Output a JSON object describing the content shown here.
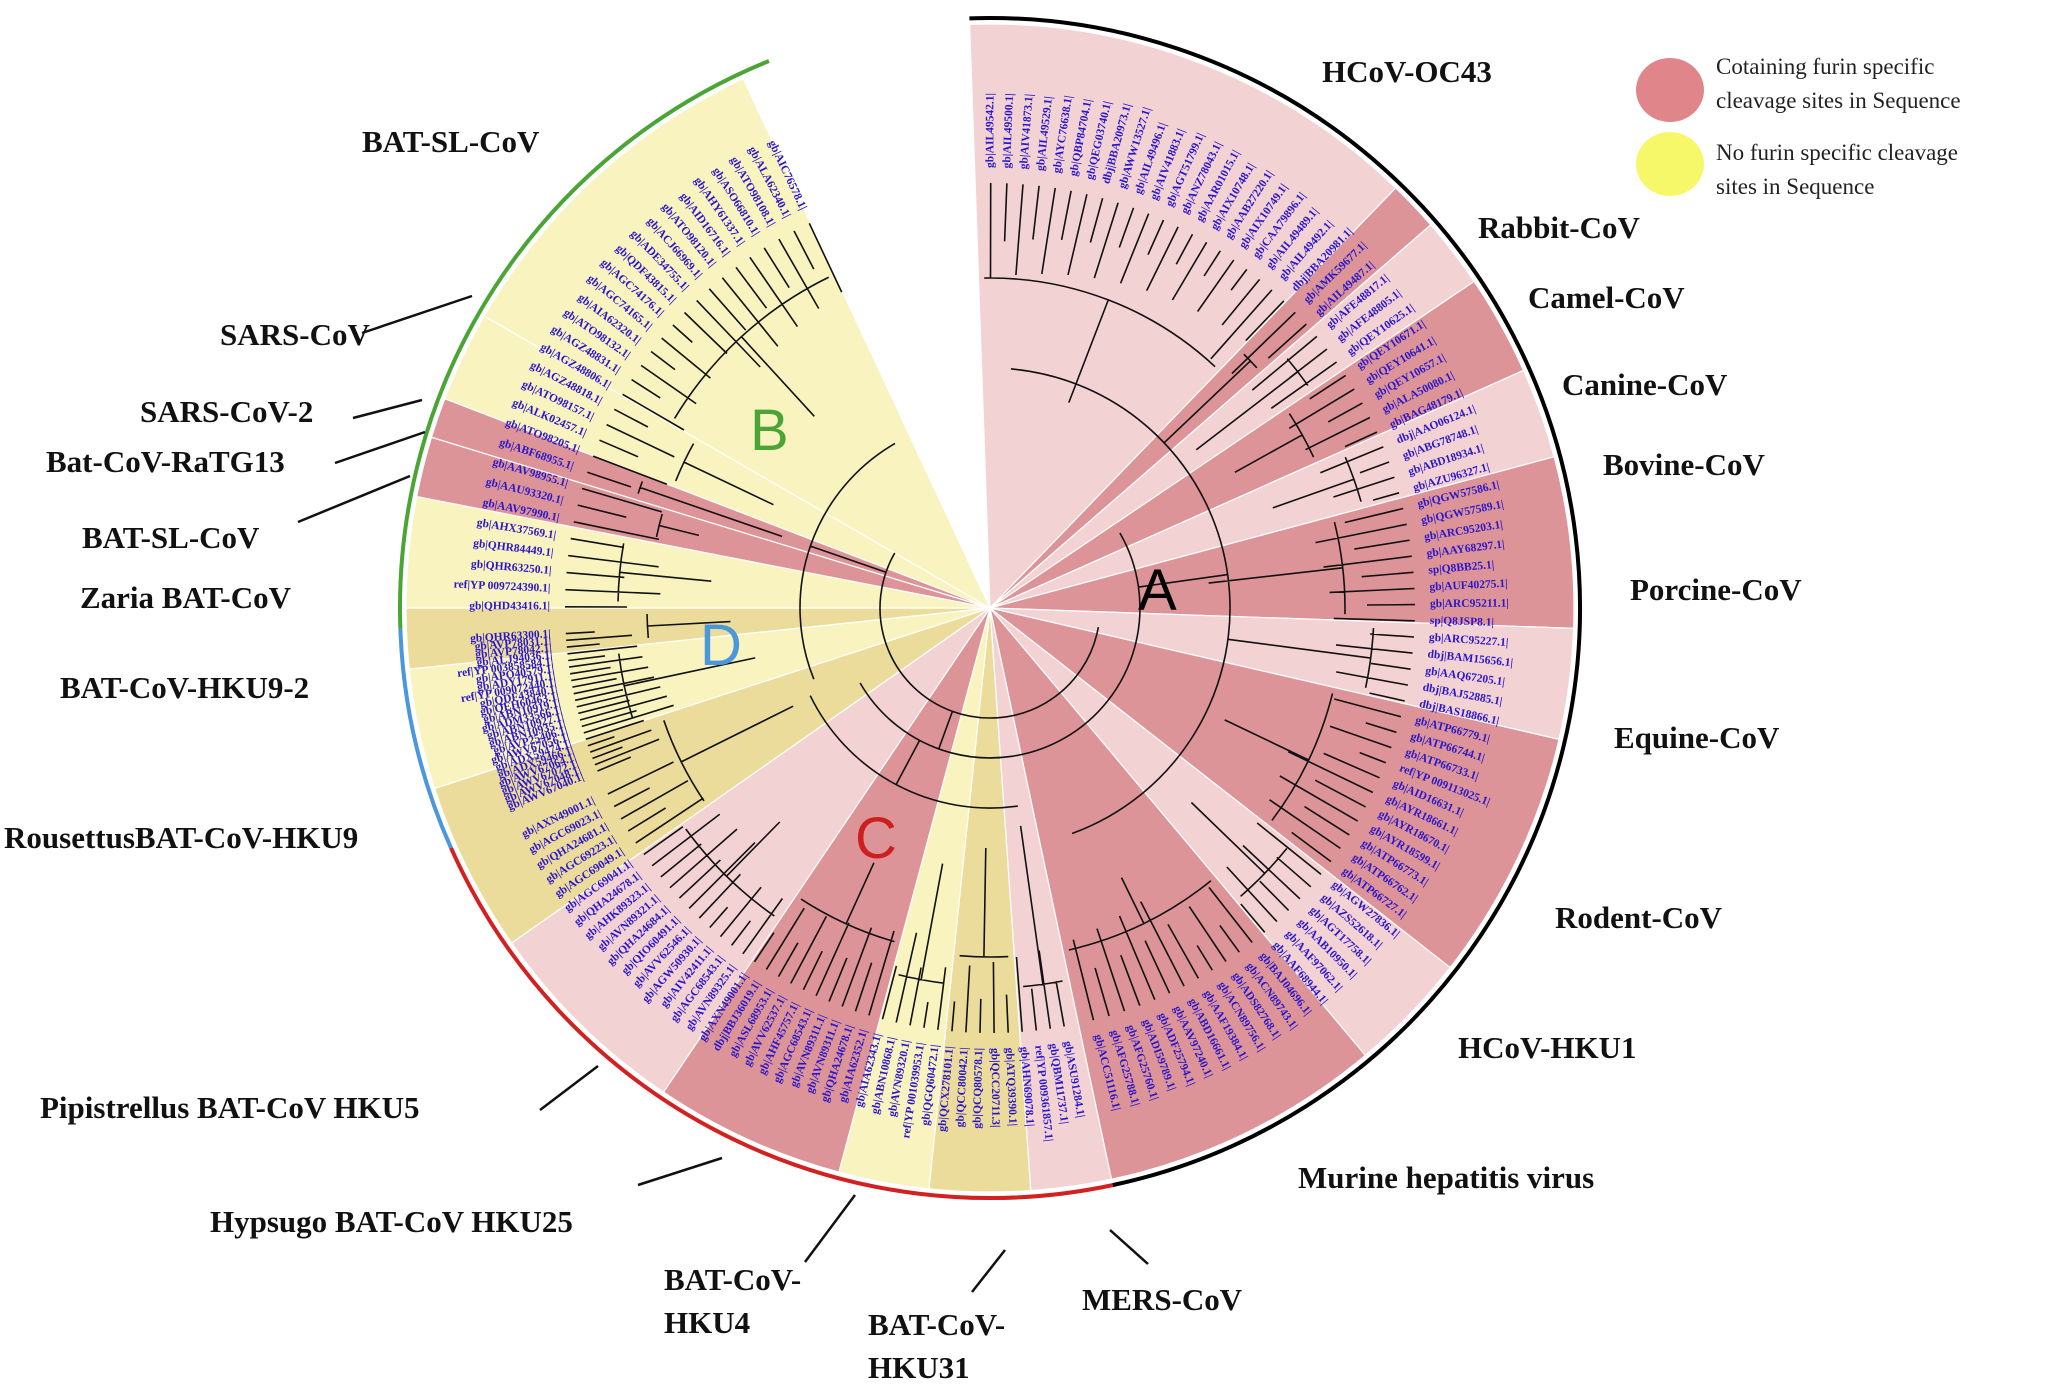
{
  "legend": {
    "items": [
      {
        "lines": [
          "Cotaining  furin specific",
          "cleavage sites in Sequence"
        ],
        "color": "#e0868b"
      },
      {
        "lines": [
          "No  furin specific cleavage",
          "sites in Sequence"
        ],
        "color": "#f7f76a"
      }
    ]
  },
  "colors": {
    "pink_fill": "#f3d2d3",
    "pink_dark": "#dd9498",
    "yellow_fill": "#f8f3bf",
    "yellow_dark": "#ecdc9c",
    "ring_black": "#000000",
    "ring_red": "#d32020",
    "ring_green": "#4aa535",
    "ring_blue": "#4a97dc",
    "clade_A": "#000000",
    "clade_B": "#4aa535",
    "clade_C": "#cc1f1f",
    "clade_D": "#4a97dc",
    "accession": "#2a17c9",
    "bootstrap": "#c0392b"
  },
  "clades": {
    "A": "A",
    "B": "B",
    "C": "C",
    "D": "D"
  },
  "groups": {
    "hcov_oc43": "HCoV-OC43",
    "rabbit": "Rabbit-CoV",
    "camel": "Camel-CoV",
    "canine": "Canine-CoV",
    "bovine": "Bovine-CoV",
    "porcine": "Porcine-CoV",
    "equine": "Equine-CoV",
    "rodent": "Rodent-CoV",
    "hcov_hku1": "HCoV-HKU1",
    "murine": "Murine hepatitis virus",
    "mers": "MERS-CoV",
    "hku31_1": "BAT-CoV-",
    "hku31_2": "HKU31",
    "hku4_1": "BAT-CoV-",
    "hku4_2": "HKU4",
    "hku25": "Hypsugo BAT-CoV HKU25",
    "hku5": "Pipistrellus BAT-CoV HKU5",
    "rousettus": "RousettusBAT-CoV-HKU9",
    "hku9_2": "BAT-CoV-HKU9-2",
    "zaria": "Zaria BAT-CoV",
    "bat_sl_lower": "BAT-SL-CoV",
    "ratg13": "Bat-CoV-RaTG13",
    "sars2": "SARS-CoV-2",
    "sars": "SARS-CoV",
    "bat_sl_top": "BAT-SL-CoV"
  },
  "accessions": {
    "A": [
      "gb|AIL49542.1|",
      "gb|AIL49500.1|",
      "gb|AIV41873.1|",
      "gb|AIL49529.1|",
      "gb|AYC76638.1|",
      "gb|QBP84704.1|",
      "gb|QEG03740.1|",
      "dbj|BBA20973.1|",
      "gb|AWW13527.1|",
      "gb|AIL49496.1|",
      "gb|AIV41883.1|",
      "gb|AGT51799.1|",
      "gb|ANZ78043.1|",
      "gb|AAR01015.1|",
      "gb|AIX10748.1|",
      "gb|AAB27220.1|",
      "gb|AIX10749.1|",
      "gb|CAA79896.1|",
      "gb|AIL49489.1|",
      "gb|AIL49492.1|",
      "dbj|BBA20981.1|",
      "gb|AMK59677.1|",
      "gb|AIL49487.1|",
      "gb|AFE48817.1|",
      "gb|AFE48805.1|",
      "gb|QEY10625.1|",
      "gb|QEY10671.1|",
      "gb|QEY10641.1|",
      "gb|QEY10657.1|",
      "gb|ALA50080.1|",
      "gb|BAG48179.1|",
      "dbj|AAO06124.1|",
      "gb|ABG78748.1|",
      "gb|ABD18934.1|",
      "gb|AZU96327.1|",
      "gb|QGW57586.1|",
      "gb|QGW57589.1|",
      "gb|ARC95203.1|",
      "gb|AAY68297.1|",
      "sp|Q8BB25.1|",
      "gb|AUF40275.1|",
      "gb|ARC95211.1|",
      "sp|Q8JSP8.1|",
      "gb|ARC95227.1|",
      "dbj|BAM15656.1|",
      "gb|AAQ67205.1|",
      "dbj|BAJ52885.1|",
      "dbj|BAS18866.1|",
      "gb|ATP66779.1|",
      "gb|ATP66744.1|",
      "gb|ATP66733.1|",
      "ref|YP 009113025.1|",
      "gb|AID16631.1|",
      "gb|AYR18661.1|",
      "gb|AYR18670.1|",
      "gb|AYR18599.1|",
      "gb|ATP66773.1|",
      "gb|ATP66762.1|",
      "gb|ATP66727.1|",
      "gb|AGW27836.1|",
      "gb|AZS52618.1|",
      "gb|AGT17758.1|",
      "gb|AAB10950.1|",
      "gb|AAF97062.1|",
      "gb|AAF68944.1|",
      "gb|BAJ04696.1|",
      "gb|ACN89743.1|",
      "gb|ADS82768.1|",
      "gb|ACN89756.1|",
      "gb|AAF19384.1|",
      "gb|ABD16661.1|",
      "gb|AAV97240.1|",
      "gb|ADF25794.1|",
      "gb|ADI59789.1|",
      "gb|AFG25760.1|",
      "gb|AFG25788.1|",
      "gb|ACC51116.1|"
    ],
    "C": [
      "gb|ASU91284.1|",
      "gb|QBM11737.1|",
      "ref|YP 009361857.1|",
      "gb|AHN69078.1|",
      "gb|ATQ39390.1|",
      "gb|QCC20711.3|",
      "gb|QCQ80578.1|",
      "gb|QCC80042.1|",
      "gb|QCX278101.1|",
      "gb|QGQ60472.1|",
      "ref|YP 001039953.1|",
      "gb|AVN89320.1|",
      "gb|ABN10868.1|",
      "gb|AIA62343.1|",
      "gb|AIA62352.1|",
      "gb|QHA24678.1|",
      "gb|AVN89311.1|",
      "gb|AVN89311.1|",
      "gb|AGC68543.1|",
      "gb|AHF45757.1|",
      "gb|AVV62537.1|",
      "gb|ASL68953.1|",
      "dbj|BBJ36019.1|",
      "gb|AXN49001.1|",
      "gb|AVN89325.1|",
      "gb|AGC68543.1|",
      "gb|AIV42411.1|",
      "gb|AGW50930.1|",
      "gb|AVV62546.1|",
      "gb|QIO60491.1|",
      "gb|QHA24684.1|",
      "gb|AVN89321.1|",
      "gb|AHK89323.1|",
      "gb|QHA24678.1|",
      "gb|AGC69041.1|",
      "gb|AGC69049.1|",
      "gb|AGC69223.1|",
      "gb|QHA24681.1|",
      "gb|AGC69023.1|",
      "gb|AXN49001.1|"
    ],
    "D": [
      "gb|AWV67040.1|",
      "gb|AWV67048.1|",
      "gb|AWV67072.1|",
      "gb|AWV67064.1|",
      "gb|ADX59466.1|",
      "gb|ADX59474.1|",
      "gb|AWV67056.1|",
      "gb|AVP25406.1|",
      "gb|ABN10935.1|",
      "gb|ABN10927.1|",
      "gb|ADM33566.1|",
      "gb|ABN10919.1|",
      "gb|QEH60463.1|",
      "gb|QDF43840.1|",
      "ref|YP 009072440.1|",
      "gb|ADY17911.1|",
      "gb|APO40579.1|",
      "ref|YP 003858584.1|",
      "gb|ALJ94036.1|",
      "gb|AVP78042.1|",
      "gb|AVP78031.1|",
      "gb|QHR63300.1|"
    ],
    "B": [
      "gb|QHD43416.1|",
      "ref|YP 009724390.1|",
      "gb|QHR63250.1|",
      "gb|QHR84449.1|",
      "gb|AHX37569.1|",
      "gb|AAV97990.1|",
      "gb|AAU93320.1|",
      "gb|AAV98955.1|",
      "gb|ABF68955.1|",
      "gb|ATO98205.1|",
      "gb|ALK02457.1|",
      "gb|ATO98157.1|",
      "gb|AGZ48818.1|",
      "gb|AGZ48806.1|",
      "gb|AGZ48831.1|",
      "gb|ATO98132.1|",
      "gb|AIA62320.1|",
      "gb|AGC74165.1|",
      "gb|AGC74176.1|",
      "gb|QDF43815.1|",
      "gb|ADE34755.1|",
      "gb|ACJ66969.1|",
      "gb|ATO98120.1|",
      "gb|AID16716.1|",
      "gb|AHY61337.1|",
      "gb|ASO66810.1|",
      "gb|ATO98108.1|",
      "gb|ALA62340.1|",
      "gb|AIC76578.1|"
    ]
  }
}
